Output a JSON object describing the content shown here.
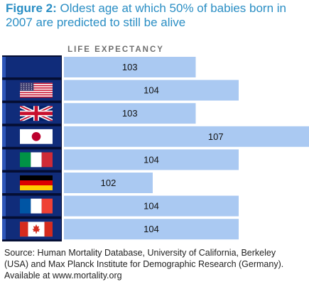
{
  "figure": {
    "label": "Figure 2:",
    "title": "Oldest age at which 50% of babies born in 2007 are predicted to still be alive"
  },
  "column_header": "LIFE EXPECTANCY",
  "source": {
    "line1": "Source: Human Mortality Database, University of California, Berkeley",
    "line2": "(USA) and Max Planck Institute for Demographic Research (Germany).",
    "line3": "Available at www.mortality.org"
  },
  "colors": {
    "title": "#2a8ec4",
    "bar": "#aac9f2",
    "flag_panel": "#102c7a",
    "frame": "#050e33"
  },
  "chart_data": {
    "type": "bar",
    "orientation": "horizontal",
    "categories": [
      "",
      "United States",
      "United Kingdom",
      "Japan",
      "Italy",
      "Germany",
      "France",
      "Canada"
    ],
    "category_icons": [
      "",
      "us-flag-icon",
      "uk-flag-icon",
      "japan-flag-icon",
      "italy-flag-icon",
      "germany-flag-icon",
      "france-flag-icon",
      "canada-flag-icon"
    ],
    "values": [
      103,
      104,
      103,
      107,
      104,
      102,
      104,
      104
    ],
    "value_labels": [
      "103",
      "104",
      "103",
      "107",
      "104",
      "102",
      "104",
      "104"
    ],
    "xlabel": "LIFE EXPECTANCY",
    "legend": "none",
    "grid": false
  }
}
